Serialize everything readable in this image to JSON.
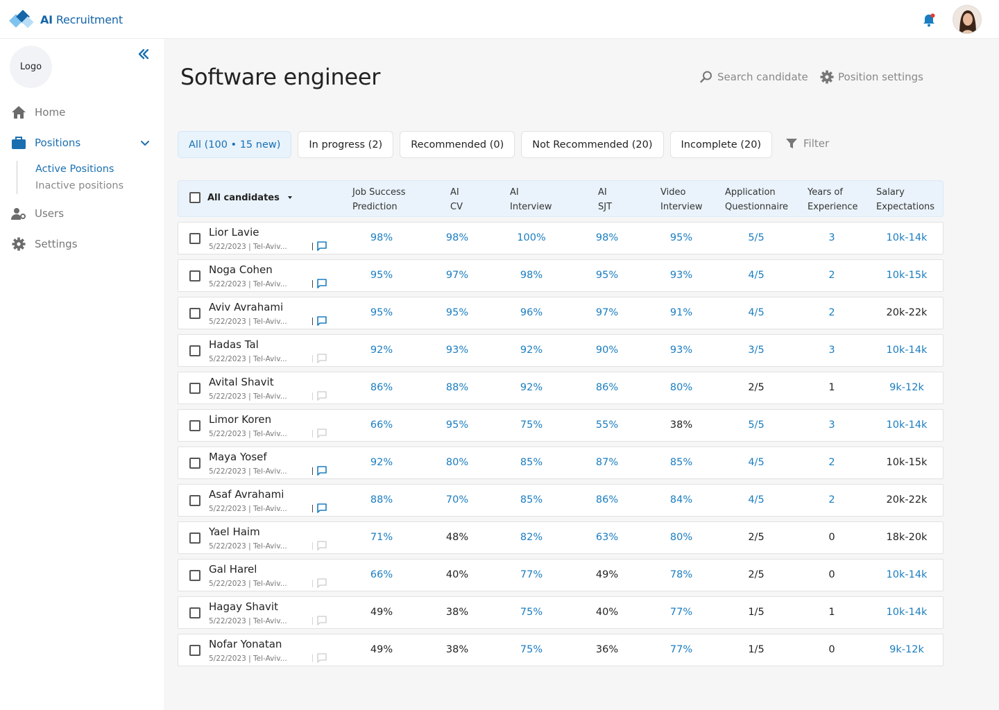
{
  "app": {
    "brand_bold": "AI",
    "brand_rest": " Recruitment"
  },
  "sidebar": {
    "logo": "Logo",
    "nav": {
      "home": "Home",
      "positions": "Positions",
      "users": "Users",
      "settings": "Settings"
    },
    "sub": {
      "active": "Active Positions",
      "inactive": "Inactive positions"
    }
  },
  "page": {
    "title": "Software engineer",
    "search": "Search candidate",
    "settings": "Position settings"
  },
  "tabs": [
    "All (100 • 15 new)",
    "In progress (2)",
    "Recommended (0)",
    "Not Recommended (20)",
    "Incomplete (20)"
  ],
  "filter": "Filter",
  "table": {
    "all_label": "All candidates",
    "headers": [
      {
        "l1": "Job Success",
        "l2": "Prediction"
      },
      {
        "l1": "AI",
        "l2": "CV"
      },
      {
        "l1": "AI",
        "l2": "Interview"
      },
      {
        "l1": "AI",
        "l2": "SJT"
      },
      {
        "l1": "Video",
        "l2": "Interview"
      },
      {
        "l1": "Application",
        "l2": "Questionnaire"
      },
      {
        "l1": "Years of",
        "l2": "Experience"
      },
      {
        "l1": "Salary",
        "l2": "Expectations"
      }
    ],
    "rows": [
      {
        "name": "Lior Lavie",
        "meta": "5/22/2023 | Tel-Aviv...",
        "msg": true,
        "cells": [
          "98%",
          "98%",
          "100%",
          "98%",
          "95%",
          "5/5",
          "3",
          "10k-14k"
        ],
        "hl": [
          1,
          1,
          1,
          1,
          1,
          1,
          1,
          1
        ]
      },
      {
        "name": "Noga Cohen",
        "meta": "5/22/2023 | Tel-Aviv...",
        "msg": true,
        "cells": [
          "95%",
          "97%",
          "98%",
          "95%",
          "93%",
          "4/5",
          "2",
          "10k-15k"
        ],
        "hl": [
          1,
          1,
          1,
          1,
          1,
          1,
          1,
          1
        ]
      },
      {
        "name": "Aviv Avrahami",
        "meta": "5/22/2023 | Tel-Aviv...",
        "msg": true,
        "cells": [
          "95%",
          "95%",
          "96%",
          "97%",
          "91%",
          "4/5",
          "2",
          "20k-22k"
        ],
        "hl": [
          1,
          1,
          1,
          1,
          1,
          1,
          1,
          0
        ]
      },
      {
        "name": "Hadas Tal",
        "meta": "5/22/2023 | Tel-Aviv...",
        "msg": false,
        "cells": [
          "92%",
          "93%",
          "92%",
          "90%",
          "93%",
          "3/5",
          "3",
          "10k-14k"
        ],
        "hl": [
          1,
          1,
          1,
          1,
          1,
          1,
          1,
          1
        ]
      },
      {
        "name": "Avital Shavit",
        "meta": "5/22/2023 | Tel-Aviv...",
        "msg": false,
        "cells": [
          "86%",
          "88%",
          "92%",
          "86%",
          "80%",
          "2/5",
          "1",
          "9k-12k"
        ],
        "hl": [
          1,
          1,
          1,
          1,
          1,
          0,
          0,
          1
        ]
      },
      {
        "name": "Limor Koren",
        "meta": "5/22/2023 | Tel-Aviv...",
        "msg": false,
        "cells": [
          "66%",
          "95%",
          "75%",
          "55%",
          "38%",
          "5/5",
          "3",
          "10k-14k"
        ],
        "hl": [
          1,
          1,
          1,
          1,
          0,
          1,
          1,
          1
        ]
      },
      {
        "name": "Maya Yosef",
        "meta": "5/22/2023 | Tel-Aviv...",
        "msg": true,
        "cells": [
          "92%",
          "80%",
          "85%",
          "87%",
          "85%",
          "4/5",
          "2",
          "10k-15k"
        ],
        "hl": [
          1,
          1,
          1,
          1,
          1,
          1,
          1,
          0
        ]
      },
      {
        "name": "Asaf Avrahami",
        "meta": "5/22/2023 | Tel-Aviv...",
        "msg": true,
        "cells": [
          "88%",
          "70%",
          "85%",
          "86%",
          "84%",
          "4/5",
          "2",
          "20k-22k"
        ],
        "hl": [
          1,
          1,
          1,
          1,
          1,
          1,
          1,
          0
        ]
      },
      {
        "name": "Yael Haim",
        "meta": "5/22/2023 | Tel-Aviv...",
        "msg": false,
        "cells": [
          "71%",
          "48%",
          "82%",
          "63%",
          "80%",
          "2/5",
          "0",
          "18k-20k"
        ],
        "hl": [
          1,
          0,
          1,
          1,
          1,
          0,
          0,
          0
        ]
      },
      {
        "name": "Gal Harel",
        "meta": "5/22/2023 | Tel-Aviv...",
        "msg": false,
        "cells": [
          "66%",
          "40%",
          "77%",
          "49%",
          "78%",
          "2/5",
          "0",
          "10k-14k"
        ],
        "hl": [
          1,
          0,
          1,
          0,
          1,
          0,
          0,
          1
        ]
      },
      {
        "name": "Hagay Shavit",
        "meta": "5/22/2023 | Tel-Aviv...",
        "msg": false,
        "cells": [
          "49%",
          "38%",
          "75%",
          "40%",
          "77%",
          "1/5",
          "1",
          "10k-14k"
        ],
        "hl": [
          0,
          0,
          1,
          0,
          1,
          0,
          0,
          1
        ]
      },
      {
        "name": "Nofar Yonatan",
        "meta": "5/22/2023 | Tel-Aviv...",
        "msg": false,
        "cells": [
          "49%",
          "38%",
          "75%",
          "36%",
          "77%",
          "1/5",
          "0",
          "9k-12k"
        ],
        "hl": [
          0,
          0,
          1,
          0,
          1,
          0,
          0,
          1
        ]
      }
    ]
  },
  "colors": {
    "accent": "#1a7dc0",
    "brand": "#1565a8",
    "notify": "#e53935"
  }
}
